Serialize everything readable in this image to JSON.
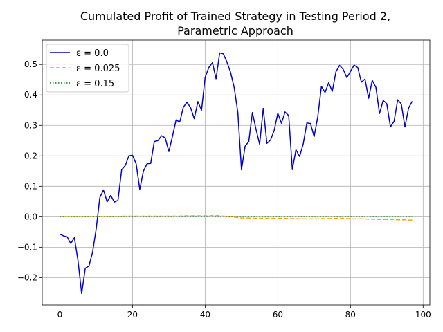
{
  "chart_data": {
    "type": "line",
    "title_line1": "Cumulated Profit of Trained Strategy in Testing Period 2,",
    "title_line2": "Parametric Approach",
    "xlim": [
      -4.85,
      101.85
    ],
    "ylim": [
      -0.29,
      0.58
    ],
    "xticks": [
      "0",
      "20",
      "40",
      "60",
      "80",
      "100"
    ],
    "yticks": [
      "−0.2",
      "−0.1",
      "0.0",
      "0.1",
      "0.2",
      "0.3",
      "0.4",
      "0.5"
    ],
    "grid": true,
    "legend_position": "top-left",
    "series": [
      {
        "name": "ε = 0.0",
        "color": "#0000cc",
        "style": "solid",
        "values": [
          -0.057,
          -0.063,
          -0.066,
          -0.088,
          -0.069,
          -0.145,
          -0.252,
          -0.169,
          -0.162,
          -0.117,
          -0.04,
          0.063,
          0.088,
          0.049,
          0.07,
          0.048,
          0.054,
          0.154,
          0.168,
          0.2,
          0.202,
          0.174,
          0.09,
          0.15,
          0.174,
          0.175,
          0.247,
          0.25,
          0.266,
          0.259,
          0.214,
          0.264,
          0.318,
          0.311,
          0.36,
          0.376,
          0.358,
          0.322,
          0.378,
          0.35,
          0.458,
          0.49,
          0.506,
          0.453,
          0.538,
          0.535,
          0.508,
          0.474,
          0.424,
          0.342,
          0.154,
          0.232,
          0.246,
          0.342,
          0.287,
          0.238,
          0.356,
          0.241,
          0.252,
          0.283,
          0.34,
          0.307,
          0.344,
          0.332,
          0.155,
          0.22,
          0.198,
          0.239,
          0.308,
          0.306,
          0.263,
          0.328,
          0.428,
          0.408,
          0.44,
          0.412,
          0.476,
          0.497,
          0.484,
          0.457,
          0.477,
          0.498,
          0.49,
          0.442,
          0.452,
          0.389,
          0.448,
          0.425,
          0.339,
          0.382,
          0.371,
          0.295,
          0.313,
          0.384,
          0.37,
          0.295,
          0.357,
          0.379
        ]
      },
      {
        "name": "ε = 0.025",
        "color": "#ffa500",
        "style": "dashed",
        "values": [
          0.001,
          0.001,
          0.001,
          0.001,
          0.001,
          0.001,
          0.001,
          0.001,
          0.001,
          0.001,
          0.001,
          0.001,
          0.001,
          0.001,
          0.001,
          0.001,
          0.001,
          0.002,
          0.002,
          0.002,
          0.002,
          0.002,
          0.002,
          0.002,
          0.002,
          0.002,
          0.002,
          0.002,
          0.002,
          0.002,
          0.002,
          0.002,
          0.002,
          0.002,
          0.003,
          0.003,
          0.003,
          0.003,
          0.003,
          0.003,
          0.003,
          0.003,
          0.004,
          0.004,
          0.003,
          0.002,
          0.001,
          0.0,
          -0.001,
          -0.003,
          -0.004,
          -0.004,
          -0.004,
          -0.005,
          -0.005,
          -0.005,
          -0.005,
          -0.005,
          -0.005,
          -0.005,
          -0.005,
          -0.005,
          -0.005,
          -0.006,
          -0.006,
          -0.006,
          -0.007,
          -0.007,
          -0.007,
          -0.007,
          -0.007,
          -0.007,
          -0.006,
          -0.006,
          -0.006,
          -0.006,
          -0.005,
          -0.005,
          -0.005,
          -0.006,
          -0.006,
          -0.007,
          -0.007,
          -0.007,
          -0.007,
          -0.008,
          -0.008,
          -0.008,
          -0.009,
          -0.009,
          -0.009,
          -0.009,
          -0.009,
          -0.01,
          -0.01,
          -0.01,
          -0.011,
          -0.011
        ]
      },
      {
        "name": "ε = 0.15",
        "color": "#008000",
        "style": "dotted",
        "values": [
          0.001,
          0.001,
          0.001,
          0.001,
          0.001,
          0.001,
          0.001,
          0.001,
          0.001,
          0.001,
          0.001,
          0.001,
          0.001,
          0.001,
          0.001,
          0.001,
          0.001,
          0.001,
          0.001,
          0.001,
          0.001,
          0.001,
          0.001,
          0.001,
          0.001,
          0.001,
          0.001,
          0.001,
          0.001,
          0.001,
          0.001,
          0.001,
          0.001,
          0.001,
          0.001,
          0.001,
          0.001,
          0.001,
          0.001,
          0.001,
          0.001,
          0.001,
          0.001,
          0.001,
          0.001,
          0.001,
          0.001,
          0.001,
          0.001,
          0.001,
          0.001,
          0.001,
          0.001,
          0.001,
          0.001,
          0.001,
          0.001,
          0.001,
          0.001,
          0.001,
          0.001,
          0.001,
          0.001,
          0.001,
          0.001,
          0.001,
          0.001,
          0.001,
          0.001,
          0.001,
          0.001,
          0.001,
          0.001,
          0.001,
          0.001,
          0.001,
          0.001,
          0.001,
          0.001,
          0.001,
          0.001,
          0.001,
          0.001,
          0.001,
          0.001,
          0.001,
          0.001,
          0.001,
          0.001,
          0.001,
          0.001,
          0.001,
          0.001,
          0.001,
          0.001,
          0.001,
          0.001,
          0.001
        ]
      }
    ]
  }
}
